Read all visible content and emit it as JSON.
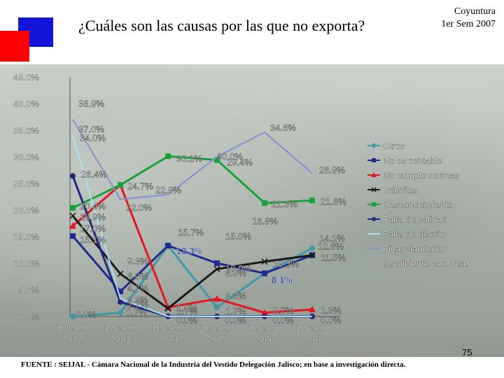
{
  "slide": {
    "title": "¿Cuáles son las causas por las que no exporta?",
    "badge_line1": "Coyuntura",
    "badge_line2": "1er Sem 2007",
    "page_number": "75",
    "source": "FUENTE : SEIJAL - Cámara Nacional de la Industria del Vestido Delegación Jalisco; en base a investigación directa."
  },
  "colors": {
    "logo_blue": "#1414d9",
    "logo_red": "#ff0000"
  },
  "chart_data": {
    "type": "line",
    "title": "¿Cuáles son las causas por las que no exporta?",
    "xlabel": "",
    "ylabel": "",
    "x_labels": [
      [
        "1er sem",
        "2002"
      ],
      [
        "1er sem",
        "2003"
      ],
      [
        "1er sem",
        "2004"
      ],
      [
        "1er sem",
        "2005"
      ],
      [
        "1er sem",
        "2006"
      ],
      [
        "1er sem",
        "2007"
      ]
    ],
    "y_ticks": [
      "0.0%",
      "5.0%",
      "10.0%",
      "15.0%",
      "20.0%",
      "25.0%",
      "30.0%",
      "35.0%",
      "40.0%",
      "45.0%"
    ],
    "ylim": [
      0,
      45
    ],
    "grid": false,
    "legend_position": "right",
    "series": [
      {
        "name": "Otros",
        "color": "#3f99a6",
        "marker": "diamond",
        "values": [
          0.0,
          0.7,
          13.3,
          1.7,
          8.1,
          12.8
        ],
        "labels": [
          "0.0%",
          "0.7%",
          "",
          "1.7%",
          "",
          "12.8%"
        ]
      },
      {
        "name": "No es rentable",
        "color": "#1f2b8f",
        "marker": "square",
        "values": [
          15.1,
          4.7,
          13.3,
          10.0,
          8.1,
          11.5
        ],
        "labels": [
          "15.1%",
          "4.7%",
          "13.3%",
          "10.0%",
          "8.1%",
          "11.5%"
        ]
      },
      {
        "name": "No cumple normas",
        "color": "#e8141e",
        "marker": "triangle",
        "values": [
          17.0,
          24.7,
          1.7,
          3.3,
          0.7,
          1.3
        ],
        "labels": [
          "17.0%",
          "24.7%",
          "1.7%",
          "3.3%",
          "0.7%",
          "1.3%"
        ]
      },
      {
        "name": "Trámites",
        "color": "#1a1a1a",
        "marker": "x",
        "values": [
          18.9,
          8.0,
          1.5,
          8.9,
          10.3,
          11.5
        ],
        "labels": [
          "18.9%",
          "8.0%",
          "1.5%",
          "8.9%",
          "10.3%",
          ""
        ]
      },
      {
        "name": "Desconocimiento",
        "color": "#18a23a",
        "marker": "square",
        "values": [
          20.4,
          24.7,
          30.1,
          29.4,
          21.3,
          21.8
        ],
        "labels": [
          "20.4%",
          "",
          "30.1%",
          "29.4%",
          "21.3%",
          "21.8%"
        ]
      },
      {
        "name": "Falta de calidad",
        "color": "#23287a",
        "marker": "circle",
        "values": [
          26.4,
          2.7,
          0.0,
          0.0,
          0.0,
          0.0
        ],
        "labels": [
          "26.4%",
          "2.7%",
          "0.0%",
          "0.0%",
          "0.0%",
          "0.0%"
        ]
      },
      {
        "name": "Falta de diseño",
        "color": "#a9e0f2",
        "marker": "line",
        "values": [
          34.0,
          3.3,
          0.0,
          0.0,
          0.0,
          0.0
        ],
        "labels": [
          "34.0%",
          "3.3%",
          "",
          "",
          "",
          ""
        ]
      },
      {
        "name": "Financiamiento",
        "color": "#8a8fd0",
        "marker": "line",
        "values": [
          37.0,
          22.0,
          22.9,
          30.0,
          34.6,
          26.9
        ],
        "labels": [
          "37.0%",
          "22.0%",
          "22.9%",
          "30.0%",
          "34.6%",
          "26.9%"
        ]
      },
      {
        "name": "Insuficiente cap. Inst.",
        "color": "#ffffff",
        "marker": "none",
        "values": [
          38.9,
          9.3,
          15.7,
          15.0,
          16.8,
          14.1
        ],
        "labels": [
          "38.9%",
          "9.3%",
          "15.7%",
          "15.0%",
          "16.8%",
          "14.1%"
        ]
      }
    ]
  }
}
